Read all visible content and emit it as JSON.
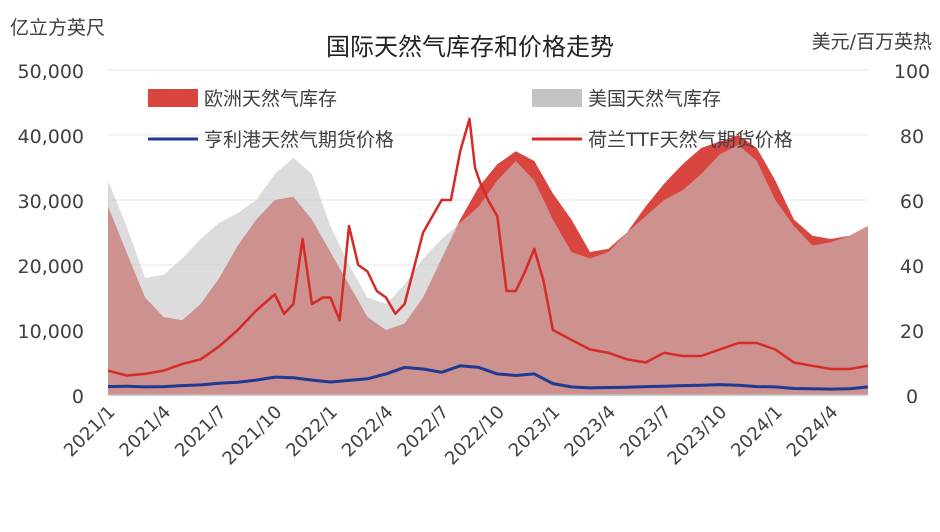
{
  "chart_data": {
    "type": "area",
    "title": "国际天然气库存和价格走势",
    "y_left_label": "亿立方英尺",
    "y_right_label": "美元/百万英热",
    "y_left_lim": [
      0,
      50000
    ],
    "y_right_lim": [
      0,
      100
    ],
    "y_left_ticks": [
      "0",
      "10,000",
      "20,000",
      "30,000",
      "40,000",
      "50,000"
    ],
    "y_right_ticks": [
      "0",
      "20",
      "40",
      "60",
      "80",
      "100"
    ],
    "x_ticks": [
      "2021/1",
      "2021/4",
      "2021/7",
      "2021/10",
      "2022/1",
      "2022/4",
      "2022/7",
      "2022/10",
      "2023/1",
      "2023/4",
      "2023/7",
      "2023/10",
      "2024/1",
      "2024/4"
    ],
    "x_month_range": [
      0,
      41
    ],
    "legend_placement": "top",
    "series": [
      {
        "name": "欧洲天然气库存",
        "kind": "area",
        "axis": "left",
        "color": "#d9453f",
        "x": [
          0,
          1,
          2,
          3,
          4,
          5,
          6,
          7,
          8,
          9,
          10,
          11,
          12,
          13,
          14,
          15,
          16,
          17,
          18,
          19,
          20,
          21,
          22,
          23,
          24,
          25,
          26,
          27,
          28,
          29,
          30,
          31,
          32,
          33,
          34,
          35,
          36,
          37,
          38,
          39,
          40,
          41
        ],
        "values": [
          29000,
          22000,
          15000,
          12000,
          11500,
          14000,
          18000,
          23000,
          27000,
          30000,
          30500,
          27000,
          22000,
          17000,
          12000,
          10000,
          11000,
          15000,
          21000,
          27000,
          32000,
          35500,
          37500,
          36000,
          31000,
          27000,
          22000,
          22500,
          25000,
          29000,
          32500,
          35500,
          38000,
          39000,
          40000,
          38000,
          33000,
          27000,
          24500,
          24000,
          24500,
          26000
        ]
      },
      {
        "name": "美国天然气库存",
        "kind": "area",
        "axis": "left",
        "color": "#c4c4c4",
        "x": [
          0,
          1,
          2,
          3,
          4,
          5,
          6,
          7,
          8,
          9,
          10,
          11,
          12,
          13,
          14,
          15,
          16,
          17,
          18,
          19,
          20,
          21,
          22,
          23,
          24,
          25,
          26,
          27,
          28,
          29,
          30,
          31,
          32,
          33,
          34,
          35,
          36,
          37,
          38,
          39,
          40,
          41
        ],
        "values": [
          33000,
          26000,
          18000,
          18500,
          21000,
          24000,
          26500,
          28000,
          30000,
          34000,
          36500,
          34000,
          26000,
          20000,
          15000,
          14000,
          17000,
          21000,
          24000,
          26500,
          29000,
          33000,
          36000,
          33000,
          27000,
          22000,
          21000,
          22000,
          25000,
          27500,
          30000,
          31500,
          34000,
          37000,
          38500,
          36000,
          30000,
          26000,
          23000,
          23500,
          24500,
          26000
        ]
      },
      {
        "name": "亨利港天然气期货价格",
        "kind": "line",
        "axis": "right",
        "color": "#1f3a93",
        "x": [
          0,
          1,
          2,
          3,
          4,
          5,
          6,
          7,
          8,
          9,
          10,
          11,
          12,
          13,
          14,
          15,
          16,
          17,
          18,
          19,
          20,
          21,
          22,
          23,
          24,
          25,
          26,
          27,
          28,
          29,
          30,
          31,
          32,
          33,
          34,
          35,
          36,
          37,
          38,
          39,
          40,
          41
        ],
        "values": [
          2.6,
          2.7,
          2.5,
          2.6,
          2.9,
          3.1,
          3.6,
          3.9,
          4.6,
          5.5,
          5.3,
          4.6,
          4.0,
          4.5,
          5.0,
          6.5,
          8.5,
          8.0,
          7.0,
          9.0,
          8.5,
          6.5,
          6.0,
          6.5,
          3.5,
          2.5,
          2.2,
          2.3,
          2.4,
          2.6,
          2.7,
          2.9,
          3.0,
          3.2,
          3.0,
          2.6,
          2.5,
          2.0,
          1.9,
          1.8,
          1.9,
          2.5
        ]
      },
      {
        "name": "荷兰TTF天然气期货价格",
        "kind": "line",
        "axis": "right",
        "color": "#d42b27",
        "x": [
          0,
          1,
          2,
          3,
          4,
          5,
          6,
          7,
          8,
          9,
          9.5,
          10,
          10.5,
          11,
          11.6,
          12,
          12.5,
          13,
          13.5,
          14,
          14.5,
          15,
          15.5,
          16,
          17,
          17.5,
          18,
          18.5,
          19,
          19.5,
          19.8,
          20.1,
          20.5,
          21,
          21.5,
          22,
          22.5,
          23,
          23.5,
          24,
          25,
          26,
          27,
          28,
          29,
          30,
          31,
          32,
          33,
          34,
          35,
          36,
          37,
          38,
          39,
          40,
          41
        ],
        "values": [
          7.5,
          6,
          6.5,
          7.5,
          9.5,
          11,
          15,
          20,
          26,
          31,
          25,
          28,
          48,
          28,
          30,
          30,
          23,
          52,
          40,
          38,
          32,
          30,
          25,
          28,
          50,
          55,
          60,
          60,
          75,
          85,
          70,
          65,
          60,
          55,
          32,
          32,
          38,
          45,
          35,
          20,
          17,
          14,
          13,
          11,
          10,
          13,
          12,
          12,
          14,
          16,
          16,
          14,
          10,
          9,
          8,
          8,
          9
        ]
      }
    ]
  }
}
